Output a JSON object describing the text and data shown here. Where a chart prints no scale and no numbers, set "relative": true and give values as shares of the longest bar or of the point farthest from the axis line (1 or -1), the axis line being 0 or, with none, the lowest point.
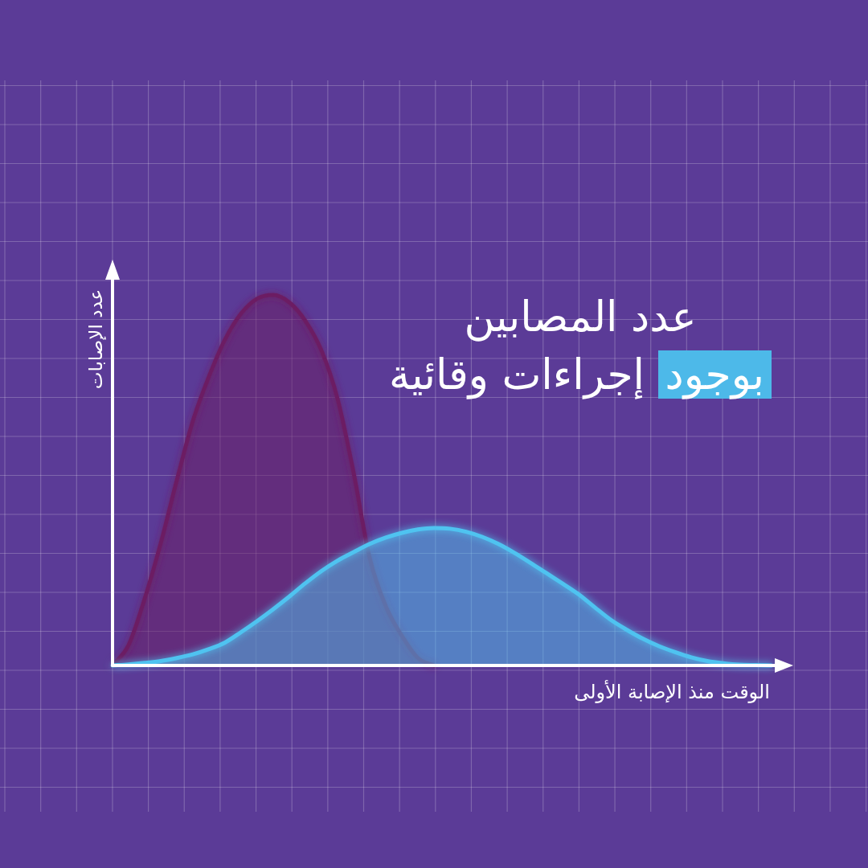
{
  "chart_data": {
    "type": "area",
    "title": "عدد المصابين\nبوجود إجراءات وقائية",
    "xlabel": "الوقت منذ الإصابة الأولى",
    "ylabel": "عدد الإصابات",
    "relative": true,
    "grid": true,
    "categories": [
      null,
      null,
      null,
      null,
      null,
      null,
      null,
      null,
      null,
      null,
      null,
      null,
      null,
      null,
      null,
      null,
      null,
      null,
      null,
      null,
      null,
      null,
      null,
      null,
      null,
      null,
      null,
      null,
      null,
      null,
      null,
      null,
      null,
      null,
      null,
      null,
      null,
      null,
      null,
      null,
      null,
      null
    ],
    "series": [
      {
        "color": "#6c1f63",
        "values": [
          0,
          0.055,
          0.18,
          0.33,
          0.5,
          0.66,
          0.78,
          0.88,
          0.95,
          0.99,
          1,
          0.98,
          0.93,
          0.85,
          0.72,
          0.52,
          0.29,
          0.16,
          0.08,
          0.02,
          0,
          null,
          null,
          null,
          null,
          null,
          null,
          null,
          null,
          null,
          null,
          null,
          null,
          null,
          null,
          null,
          null,
          null,
          null,
          null,
          null,
          null
        ]
      },
      {
        "color": "#4fc3f0",
        "values": [
          0,
          0.003,
          0.007,
          0.012,
          0.02,
          0.03,
          0.044,
          0.062,
          0.09,
          0.12,
          0.152,
          0.186,
          0.222,
          0.255,
          0.283,
          0.306,
          0.328,
          0.345,
          0.358,
          0.367,
          0.371,
          0.369,
          0.361,
          0.347,
          0.328,
          0.304,
          0.277,
          0.249,
          0.221,
          0.192,
          0.157,
          0.123,
          0.096,
          0.072,
          0.052,
          0.036,
          0.022,
          0.012,
          0.006,
          0.002,
          0.001,
          0
        ]
      }
    ]
  }
}
